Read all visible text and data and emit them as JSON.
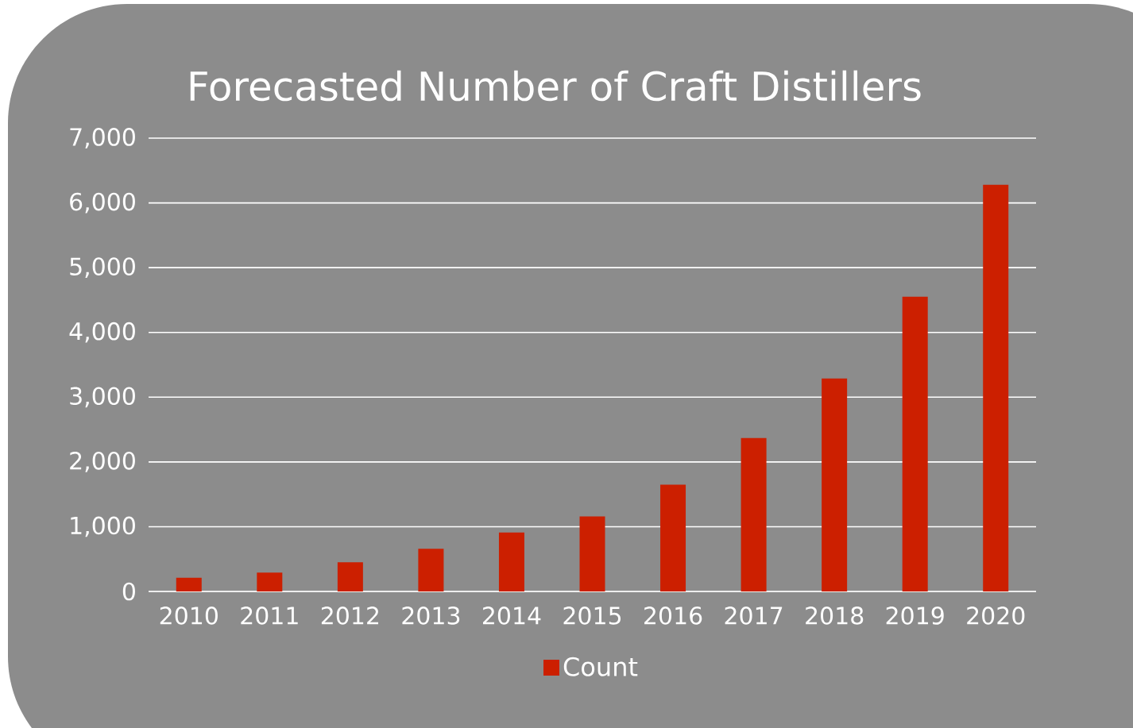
{
  "chart_data": {
    "type": "bar",
    "title": "Forecasted Number of Craft Distillers",
    "categories": [
      "2010",
      "2011",
      "2012",
      "2013",
      "2014",
      "2015",
      "2016",
      "2017",
      "2018",
      "2019",
      "2020"
    ],
    "series": [
      {
        "name": "Count",
        "color": "#cc1f00",
        "values": [
          210,
          290,
          450,
          660,
          910,
          1160,
          1650,
          2370,
          3290,
          4550,
          6280
        ]
      }
    ],
    "ylim": [
      0,
      7000
    ],
    "yticks": [
      {
        "value": 0,
        "label": "0"
      },
      {
        "value": 1000,
        "label": "1,000"
      },
      {
        "value": 2000,
        "label": "2,000"
      },
      {
        "value": 3000,
        "label": "3,000"
      },
      {
        "value": 4000,
        "label": "4,000"
      },
      {
        "value": 5000,
        "label": "5,000"
      },
      {
        "value": 6000,
        "label": "6,000"
      },
      {
        "value": 7000,
        "label": "7,000"
      }
    ],
    "grid": "y",
    "legend": "bottom"
  }
}
